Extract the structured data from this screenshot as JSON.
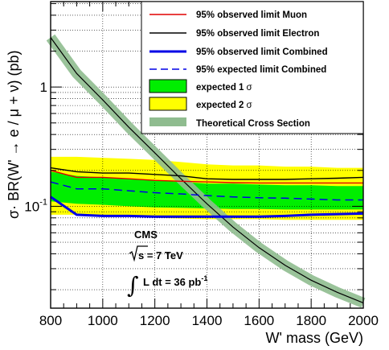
{
  "chart_data": {
    "type": "line",
    "xlabel": "W' mass (GeV)",
    "ylabel_parts": {
      "sigma": "σ",
      "dot": "·",
      "br": " BR(W'",
      "arrow": " → ",
      "decay": "e / μ + ν) (pb)"
    },
    "xlim": [
      800,
      2000
    ],
    "ylim": [
      0.014,
      5.2
    ],
    "yscale": "log",
    "grid": true,
    "x_ticks": [
      800,
      1000,
      1200,
      1400,
      1600,
      1800,
      2000
    ],
    "y_major_ticks": [
      {
        "value": 1,
        "label": "1"
      },
      {
        "value": 0.1,
        "base": "10",
        "exp": "-1"
      }
    ],
    "legend_position": "top-right",
    "legend": [
      {
        "id": "muon",
        "label": "95% observed limit Muon",
        "color": "#e00000",
        "style": "solid"
      },
      {
        "id": "electron",
        "label": "95% observed limit Electron",
        "color": "#000000",
        "style": "solid"
      },
      {
        "id": "combined",
        "label": "95% observed limit Combined",
        "color": "#0000e6",
        "style": "solid"
      },
      {
        "id": "expected",
        "label": "95% expected limit Combined",
        "color": "#0000e6",
        "style": "dashed"
      },
      {
        "id": "band1",
        "label": "expected 1",
        "sigma": "σ",
        "color": "#00ee00",
        "style": "box"
      },
      {
        "id": "band2",
        "label": "expected 2",
        "sigma": "σ",
        "color": "#ffff00",
        "style": "box"
      },
      {
        "id": "theory",
        "label": "Theoretical Cross Section",
        "color": "#8fbc8f",
        "style": "thick"
      }
    ],
    "x": [
      800,
      900,
      1000,
      1100,
      1200,
      1300,
      1400,
      1500,
      1600,
      1700,
      1800,
      1900,
      2000
    ],
    "band_2sigma": {
      "low": [
        0.085,
        0.085,
        0.083,
        0.082,
        0.08,
        0.079,
        0.078,
        0.078,
        0.078,
        0.077,
        0.077,
        0.077,
        0.077
      ],
      "high": [
        0.26,
        0.26,
        0.255,
        0.25,
        0.245,
        0.235,
        0.225,
        0.22,
        0.22,
        0.215,
        0.215,
        0.21,
        0.21
      ]
    },
    "band_1sigma": {
      "low": [
        0.11,
        0.105,
        0.103,
        0.1,
        0.098,
        0.097,
        0.096,
        0.095,
        0.095,
        0.094,
        0.094,
        0.094,
        0.094
      ],
      "high": [
        0.195,
        0.18,
        0.175,
        0.17,
        0.165,
        0.16,
        0.155,
        0.155,
        0.152,
        0.15,
        0.15,
        0.148,
        0.148
      ]
    },
    "series": [
      {
        "id": "muon",
        "values": [
          0.2,
          0.175,
          0.175,
          0.17,
          0.165,
          0.162,
          0.16,
          0.158,
          0.157,
          0.157,
          0.157,
          0.157,
          0.157
        ]
      },
      {
        "id": "electron",
        "values": [
          0.21,
          0.195,
          0.19,
          0.19,
          0.185,
          0.18,
          0.17,
          0.168,
          0.168,
          0.168,
          0.17,
          0.172,
          0.175
        ]
      },
      {
        "id": "combined",
        "values": [
          0.12,
          0.085,
          0.083,
          0.083,
          0.082,
          0.082,
          0.082,
          0.082,
          0.082,
          0.083,
          0.085,
          0.086,
          0.087
        ]
      },
      {
        "id": "expected",
        "values": [
          0.16,
          0.14,
          0.14,
          0.135,
          0.13,
          0.127,
          0.123,
          0.12,
          0.118,
          0.117,
          0.115,
          0.113,
          0.113
        ]
      },
      {
        "id": "theory",
        "values": [
          2.6,
          1.3,
          0.78,
          0.46,
          0.28,
          0.17,
          0.105,
          0.067,
          0.045,
          0.032,
          0.024,
          0.019,
          0.0155
        ]
      }
    ],
    "annotations": {
      "experiment": "CMS",
      "sqrt_s": "s = 7 TeV",
      "integral": "∫",
      "lumi": "L dt = 36 pb",
      "lumi_exp": "-1"
    }
  }
}
